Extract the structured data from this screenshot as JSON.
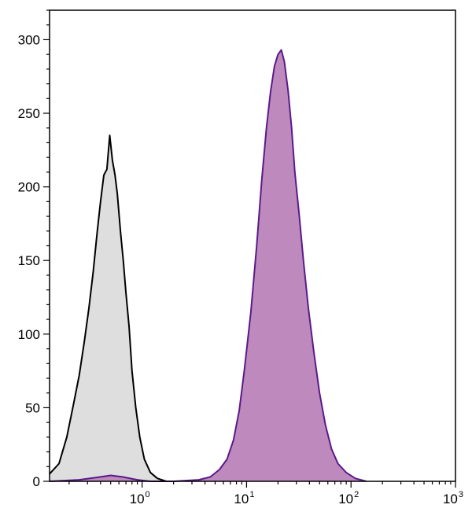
{
  "chart_data": {
    "type": "area",
    "title": "",
    "xlabel": "",
    "ylabel": "",
    "x_scale": "log",
    "xlim": [
      0.13,
      1000
    ],
    "ylim": [
      0,
      320
    ],
    "grid": false,
    "legend": "none",
    "x_ticks": [
      {
        "value": 1,
        "base": "10",
        "exp": "0"
      },
      {
        "value": 10,
        "base": "10",
        "exp": "1"
      },
      {
        "value": 100,
        "base": "10",
        "exp": "2"
      },
      {
        "value": 1000,
        "base": "10",
        "exp": "3"
      }
    ],
    "y_ticks": [
      {
        "value": 0,
        "label": "0"
      },
      {
        "value": 50,
        "label": "50"
      },
      {
        "value": 100,
        "label": "100"
      },
      {
        "value": 150,
        "label": "150"
      },
      {
        "value": 200,
        "label": "200"
      },
      {
        "value": 250,
        "label": "250"
      },
      {
        "value": 300,
        "label": "300"
      }
    ],
    "series": [
      {
        "fill": "#dedede",
        "stroke": "#000000",
        "x": [
          0.13,
          0.16,
          0.19,
          0.22,
          0.25,
          0.28,
          0.31,
          0.34,
          0.37,
          0.4,
          0.43,
          0.46,
          0.49,
          0.52,
          0.55,
          0.58,
          0.62,
          0.66,
          0.7,
          0.75,
          0.8,
          0.87,
          0.95,
          1.05,
          1.2,
          1.4,
          1.7
        ],
        "y": [
          5,
          12,
          30,
          52,
          72,
          95,
          118,
          142,
          168,
          190,
          208,
          212,
          235,
          218,
          208,
          195,
          170,
          150,
          128,
          105,
          75,
          50,
          30,
          15,
          6,
          2,
          0
        ]
      },
      {
        "fill": "#be8abe",
        "stroke": "#5a1a8a",
        "x": [
          0.13,
          0.25,
          0.4,
          0.5,
          0.65,
          0.9,
          1.2,
          2.0,
          3.5,
          4.5,
          5.5,
          6.5,
          7.5,
          8.5,
          9.5,
          11,
          12.5,
          14,
          15.5,
          17,
          18.5,
          20,
          21.5,
          23,
          25,
          27,
          29,
          32,
          35,
          39,
          44,
          50,
          57,
          65,
          75,
          90,
          110,
          140
        ],
        "y": [
          0,
          1,
          3,
          4,
          3,
          1,
          0,
          0,
          1,
          3,
          8,
          15,
          28,
          48,
          75,
          115,
          160,
          205,
          240,
          265,
          282,
          290,
          293,
          285,
          265,
          240,
          210,
          180,
          150,
          118,
          88,
          60,
          38,
          22,
          12,
          6,
          2,
          0
        ]
      }
    ]
  }
}
